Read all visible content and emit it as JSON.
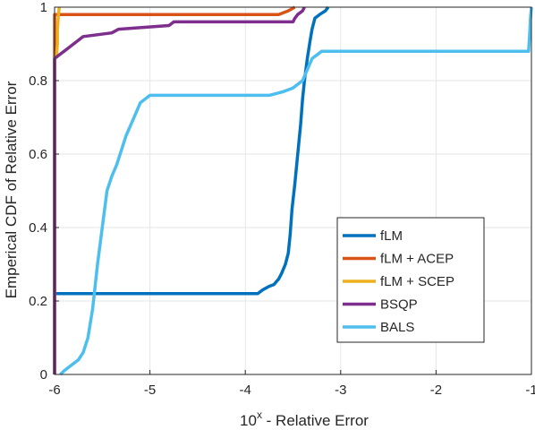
{
  "chart_data": {
    "type": "line",
    "xlabel_base": "10",
    "xlabel_sup": "x",
    "xlabel_rest": " - Relative Error",
    "ylabel": "Emperical CDF of Relative Error",
    "xlim": [
      -6,
      -1
    ],
    "ylim": [
      0,
      1
    ],
    "x_ticks": [
      -6,
      -5,
      -4,
      -3,
      -2,
      -1
    ],
    "x_tick_labels": [
      "-6",
      "-5",
      "-4",
      "-3",
      "-2",
      "-1"
    ],
    "y_ticks": [
      0,
      0.2,
      0.4,
      0.6,
      0.8,
      1
    ],
    "y_tick_labels": [
      "0",
      "0.2",
      "0.4",
      "0.6",
      "0.8",
      "1"
    ],
    "grid": true,
    "legend_position": "lower-right",
    "series": [
      {
        "name": "fLM",
        "color": "#0072BD",
        "points": [
          [
            -6,
            0.22
          ],
          [
            -3.87,
            0.22
          ],
          [
            -3.82,
            0.23
          ],
          [
            -3.75,
            0.24
          ],
          [
            -3.7,
            0.245
          ],
          [
            -3.65,
            0.26
          ],
          [
            -3.62,
            0.275
          ],
          [
            -3.58,
            0.3
          ],
          [
            -3.55,
            0.33
          ],
          [
            -3.53,
            0.38
          ],
          [
            -3.51,
            0.45
          ],
          [
            -3.48,
            0.52
          ],
          [
            -3.45,
            0.6
          ],
          [
            -3.42,
            0.68
          ],
          [
            -3.4,
            0.75
          ],
          [
            -3.38,
            0.8
          ],
          [
            -3.35,
            0.86
          ],
          [
            -3.32,
            0.91
          ],
          [
            -3.3,
            0.94
          ],
          [
            -3.27,
            0.97
          ],
          [
            -3.22,
            0.98
          ],
          [
            -3.16,
            0.99
          ],
          [
            -3.13,
            1.0
          ]
        ]
      },
      {
        "name": "fLM + ACEP",
        "color": "#D95319",
        "points": [
          [
            -6,
            0
          ],
          [
            -6,
            0.98
          ],
          [
            -3.65,
            0.98
          ],
          [
            -3.55,
            0.99
          ],
          [
            -3.48,
            1.0
          ]
        ]
      },
      {
        "name": "fLM + SCEP",
        "color": "#EDB120",
        "points": [
          [
            -6,
            0
          ],
          [
            -6,
            0.86
          ],
          [
            -5.98,
            0.87
          ],
          [
            -5.97,
            0.9
          ],
          [
            -5.97,
            0.94
          ],
          [
            -5.96,
            0.98
          ],
          [
            -5.95,
            1.0
          ]
        ]
      },
      {
        "name": "BSQP",
        "color": "#7E2F8E",
        "points": [
          [
            -6,
            0
          ],
          [
            -6,
            0.86
          ],
          [
            -5.95,
            0.87
          ],
          [
            -5.9,
            0.88
          ],
          [
            -5.85,
            0.89
          ],
          [
            -5.8,
            0.9
          ],
          [
            -5.75,
            0.91
          ],
          [
            -5.7,
            0.92
          ],
          [
            -5.4,
            0.93
          ],
          [
            -5.33,
            0.94
          ],
          [
            -4.8,
            0.95
          ],
          [
            -4.75,
            0.96
          ],
          [
            -3.5,
            0.96
          ],
          [
            -3.48,
            0.97
          ],
          [
            -3.45,
            0.98
          ],
          [
            -3.4,
            0.99
          ],
          [
            -3.38,
            1.0
          ]
        ]
      },
      {
        "name": "BALS",
        "color": "#4DBEEE",
        "points": [
          [
            -5.94,
            0
          ],
          [
            -5.9,
            0.01
          ],
          [
            -5.85,
            0.02
          ],
          [
            -5.8,
            0.03
          ],
          [
            -5.75,
            0.04
          ],
          [
            -5.7,
            0.06
          ],
          [
            -5.65,
            0.1
          ],
          [
            -5.6,
            0.18
          ],
          [
            -5.55,
            0.3
          ],
          [
            -5.5,
            0.4
          ],
          [
            -5.45,
            0.5
          ],
          [
            -5.4,
            0.54
          ],
          [
            -5.35,
            0.57
          ],
          [
            -5.3,
            0.61
          ],
          [
            -5.25,
            0.65
          ],
          [
            -5.2,
            0.68
          ],
          [
            -5.15,
            0.71
          ],
          [
            -5.1,
            0.74
          ],
          [
            -5.05,
            0.75
          ],
          [
            -5.0,
            0.76
          ],
          [
            -3.75,
            0.76
          ],
          [
            -3.6,
            0.77
          ],
          [
            -3.5,
            0.78
          ],
          [
            -3.4,
            0.8
          ],
          [
            -3.35,
            0.83
          ],
          [
            -3.3,
            0.86
          ],
          [
            -3.25,
            0.87
          ],
          [
            -3.2,
            0.88
          ],
          [
            -1.03,
            0.88
          ],
          [
            -1.02,
            0.92
          ],
          [
            -1.01,
            0.97
          ],
          [
            -1.0,
            1.0
          ]
        ]
      }
    ]
  }
}
